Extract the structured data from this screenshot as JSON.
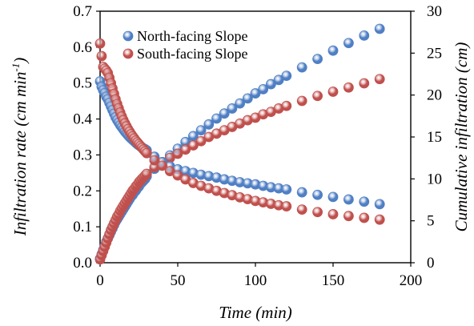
{
  "chart_data": {
    "type": "scatter",
    "xlabel": "Time (min)",
    "ylabel_left": "Infiltration rate (cm min",
    "ylabel_left_sup": "-1",
    "ylabel_left_close": ")",
    "ylabel_right": "Cumulative infiltration (cm)",
    "xlim": [
      0,
      200
    ],
    "ylim_left": [
      0,
      0.7
    ],
    "ylim_right": [
      0,
      30
    ],
    "x_ticks": [
      "0",
      "50",
      "100",
      "150",
      "200"
    ],
    "y_left_ticks": [
      "0.0",
      "0.1",
      "0.2",
      "0.3",
      "0.4",
      "0.5",
      "0.6",
      "0.7"
    ],
    "y_right_ticks": [
      "0",
      "5",
      "10",
      "15",
      "20",
      "25",
      "30"
    ],
    "grid": false,
    "legend_position": "top-left",
    "colors": {
      "north": "#4f7fc4",
      "south": "#c0504d"
    },
    "series": [
      {
        "name": "North-facing Slope",
        "color": "#4f7fc4",
        "rate_x": [
          0,
          1,
          2,
          3,
          4,
          5,
          6,
          7,
          8,
          9,
          10,
          11,
          12,
          13,
          14,
          15,
          16,
          17,
          18,
          19,
          20,
          21,
          22,
          23,
          24,
          25,
          26,
          27,
          28,
          29,
          30,
          35,
          40,
          45,
          50,
          55,
          60,
          65,
          70,
          75,
          80,
          85,
          90,
          95,
          100,
          105,
          110,
          115,
          120,
          130,
          140,
          150,
          160,
          170,
          180
        ],
        "rate_y": [
          0.505,
          0.49,
          0.48,
          0.472,
          0.462,
          0.455,
          0.445,
          0.435,
          0.425,
          0.415,
          0.405,
          0.397,
          0.39,
          0.383,
          0.377,
          0.371,
          0.365,
          0.36,
          0.355,
          0.35,
          0.346,
          0.342,
          0.338,
          0.334,
          0.33,
          0.327,
          0.324,
          0.321,
          0.318,
          0.316,
          0.313,
          0.295,
          0.28,
          0.268,
          0.26,
          0.255,
          0.25,
          0.245,
          0.241,
          0.237,
          0.232,
          0.228,
          0.224,
          0.221,
          0.218,
          0.214,
          0.21,
          0.207,
          0.204,
          0.196,
          0.189,
          0.183,
          0.176,
          0.17,
          0.163
        ],
        "cumulative_x": [
          0,
          1,
          2,
          3,
          4,
          5,
          6,
          7,
          8,
          9,
          10,
          11,
          12,
          13,
          14,
          15,
          16,
          17,
          18,
          19,
          20,
          21,
          22,
          23,
          24,
          25,
          26,
          27,
          28,
          29,
          30,
          35,
          40,
          45,
          50,
          55,
          60,
          65,
          70,
          75,
          80,
          85,
          90,
          95,
          100,
          105,
          110,
          115,
          120,
          130,
          140,
          150,
          160,
          170,
          180
        ],
        "cumulative_y": [
          0.5,
          1.0,
          1.5,
          2.0,
          2.5,
          2.9,
          3.3,
          3.7,
          4.1,
          4.5,
          4.9,
          5.2,
          5.5,
          5.8,
          6.1,
          6.4,
          6.7,
          7.0,
          7.3,
          7.6,
          7.9,
          8.1,
          8.4,
          8.6,
          8.9,
          9.1,
          9.4,
          9.6,
          9.8,
          10.0,
          10.3,
          11.2,
          12.0,
          12.8,
          13.6,
          14.4,
          15.1,
          15.8,
          16.5,
          17.2,
          17.8,
          18.4,
          19.0,
          19.6,
          20.2,
          20.7,
          21.3,
          21.8,
          22.3,
          23.3,
          24.3,
          25.3,
          26.2,
          27.1,
          27.9
        ]
      },
      {
        "name": "South-facing Slope",
        "color": "#c0504d",
        "rate_x": [
          0,
          1,
          2,
          3,
          4,
          5,
          6,
          7,
          8,
          9,
          10,
          11,
          12,
          13,
          14,
          15,
          16,
          17,
          18,
          19,
          20,
          21,
          22,
          23,
          24,
          25,
          26,
          27,
          28,
          29,
          30,
          35,
          40,
          45,
          50,
          55,
          60,
          65,
          70,
          75,
          80,
          85,
          90,
          95,
          100,
          105,
          110,
          115,
          120,
          130,
          140,
          150,
          160,
          170,
          180
        ],
        "rate_y": [
          0.61,
          0.575,
          0.545,
          0.54,
          0.535,
          0.528,
          0.515,
          0.5,
          0.485,
          0.47,
          0.455,
          0.442,
          0.43,
          0.418,
          0.407,
          0.397,
          0.388,
          0.38,
          0.372,
          0.365,
          0.358,
          0.352,
          0.346,
          0.34,
          0.335,
          0.33,
          0.325,
          0.32,
          0.315,
          0.31,
          0.305,
          0.285,
          0.27,
          0.255,
          0.243,
          0.232,
          0.222,
          0.214,
          0.207,
          0.2,
          0.194,
          0.188,
          0.182,
          0.177,
          0.172,
          0.168,
          0.164,
          0.16,
          0.157,
          0.148,
          0.141,
          0.135,
          0.13,
          0.125,
          0.12
        ],
        "cumulative_x": [
          0,
          1,
          2,
          3,
          4,
          5,
          6,
          7,
          8,
          9,
          10,
          11,
          12,
          13,
          14,
          15,
          16,
          17,
          18,
          19,
          20,
          21,
          22,
          23,
          24,
          25,
          26,
          27,
          28,
          29,
          30,
          35,
          40,
          45,
          50,
          55,
          60,
          65,
          70,
          75,
          80,
          85,
          90,
          95,
          100,
          105,
          110,
          115,
          120,
          130,
          140,
          150,
          160,
          170,
          180
        ],
        "cumulative_y": [
          0.4,
          0.9,
          1.4,
          1.9,
          2.4,
          2.9,
          3.4,
          3.9,
          4.3,
          4.7,
          5.1,
          5.5,
          5.8,
          6.2,
          6.5,
          6.8,
          7.1,
          7.4,
          7.7,
          8.0,
          8.3,
          8.6,
          8.8,
          9.1,
          9.3,
          9.6,
          9.8,
          10.0,
          10.2,
          10.4,
          10.6,
          11.4,
          12.0,
          12.5,
          13.0,
          13.5,
          14.0,
          14.5,
          15.0,
          15.4,
          15.8,
          16.2,
          16.6,
          17.0,
          17.3,
          17.7,
          18.0,
          18.4,
          18.7,
          19.3,
          19.9,
          20.4,
          20.9,
          21.4,
          21.9
        ]
      }
    ]
  }
}
